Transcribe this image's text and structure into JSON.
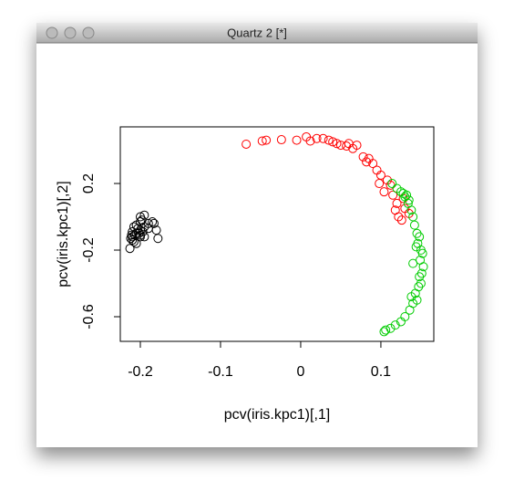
{
  "window": {
    "title": "Quartz 2 [*]"
  },
  "chart_data": {
    "type": "scatter",
    "x_label": "pcv(iris.kpc1)[,1]",
    "y_label": "pcv(iris.kpc1)[,2]",
    "xlim": [
      -0.225,
      0.166
    ],
    "ylim": [
      -0.748,
      0.54
    ],
    "xticks": [
      -0.2,
      -0.1,
      0.0,
      0.1
    ],
    "yticks": [
      0.2,
      -0.2,
      -0.6
    ],
    "series": [
      {
        "color": "#000000",
        "x": [
          -0.21,
          -0.205,
          -0.2,
          -0.198,
          -0.195,
          -0.2,
          -0.205,
          -0.21,
          -0.212,
          -0.208,
          -0.2,
          -0.195,
          -0.19,
          -0.185,
          -0.18,
          -0.183,
          -0.2,
          -0.203,
          -0.207,
          -0.21,
          -0.213,
          -0.205,
          -0.178,
          -0.2,
          -0.197,
          -0.19,
          -0.202,
          -0.208,
          -0.195,
          -0.211
        ],
        "values": [
          -0.12,
          -0.1,
          -0.08,
          -0.02,
          0.01,
          0.0,
          -0.05,
          -0.09,
          -0.13,
          -0.15,
          -0.11,
          -0.06,
          -0.04,
          -0.03,
          -0.08,
          -0.04,
          -0.03,
          -0.07,
          -0.11,
          -0.14,
          -0.19,
          -0.16,
          -0.13,
          -0.12,
          -0.09,
          -0.07,
          -0.1,
          -0.06,
          -0.12,
          -0.11
        ]
      },
      {
        "color": "#ff0000",
        "x": [
          -0.068,
          -0.048,
          -0.043,
          -0.024,
          -0.005,
          0.007,
          0.012,
          0.02,
          0.028,
          0.035,
          0.04,
          0.045,
          0.05,
          0.057,
          0.06,
          0.065,
          0.07,
          0.078,
          0.082,
          0.085,
          0.09,
          0.095,
          0.1,
          0.098,
          0.104,
          0.108,
          0.112,
          0.115,
          0.12,
          0.118,
          0.122,
          0.126,
          0.13,
          0.135,
          0.128
        ],
        "values": [
          0.436,
          0.455,
          0.46,
          0.463,
          0.46,
          0.48,
          0.455,
          0.47,
          0.47,
          0.46,
          0.45,
          0.44,
          0.43,
          0.425,
          0.44,
          0.41,
          0.43,
          0.36,
          0.33,
          0.35,
          0.32,
          0.28,
          0.25,
          0.2,
          0.15,
          0.22,
          0.19,
          0.13,
          0.08,
          0.04,
          0.0,
          -0.02,
          0.05,
          0.02,
          0.11
        ]
      },
      {
        "color": "#00cc00",
        "x": [
          0.114,
          0.12,
          0.125,
          0.128,
          0.13,
          0.132,
          0.135,
          0.134,
          0.138,
          0.14,
          0.142,
          0.145,
          0.148,
          0.146,
          0.15,
          0.152,
          0.149,
          0.153,
          0.151,
          0.148,
          0.15,
          0.147,
          0.143,
          0.145,
          0.14,
          0.136,
          0.13,
          0.125,
          0.118,
          0.112,
          0.106,
          0.104,
          0.14,
          0.144,
          0.138
        ],
        "values": [
          0.2,
          0.17,
          0.15,
          0.14,
          0.12,
          0.13,
          0.1,
          0.08,
          0.04,
          0.0,
          -0.05,
          -0.1,
          -0.12,
          -0.16,
          -0.2,
          -0.22,
          -0.26,
          -0.3,
          -0.34,
          -0.36,
          -0.4,
          -0.42,
          -0.46,
          -0.5,
          -0.52,
          -0.56,
          -0.6,
          -0.63,
          -0.65,
          -0.67,
          -0.68,
          -0.69,
          -0.28,
          -0.18,
          -0.48
        ]
      }
    ]
  }
}
